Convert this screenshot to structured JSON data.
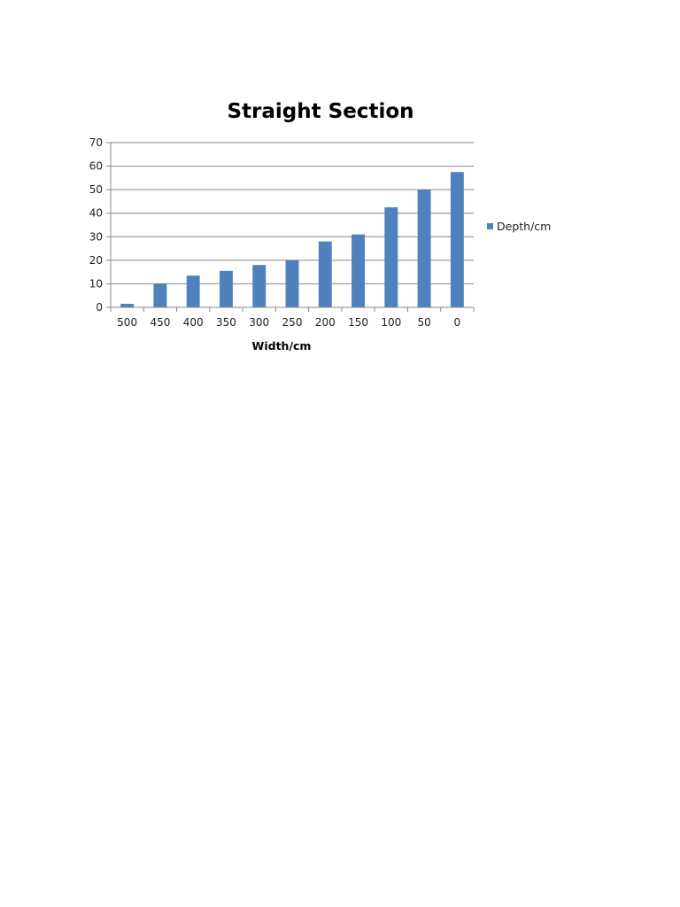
{
  "chart_data": {
    "type": "bar",
    "title": "Straight Section",
    "xlabel": "Width/cm",
    "ylabel": "",
    "categories": [
      "500",
      "450",
      "400",
      "350",
      "300",
      "250",
      "200",
      "150",
      "100",
      "50",
      "0"
    ],
    "series": [
      {
        "name": "Depth/cm",
        "color": "#4f81bd",
        "values": [
          1.5,
          10,
          13.5,
          15.5,
          18,
          20,
          28,
          31,
          42.5,
          50,
          57.5
        ]
      }
    ],
    "ylim": [
      0,
      70
    ],
    "yticks": [
      0,
      10,
      20,
      30,
      40,
      50,
      60,
      70
    ],
    "grid": true,
    "legend_position": "right"
  }
}
